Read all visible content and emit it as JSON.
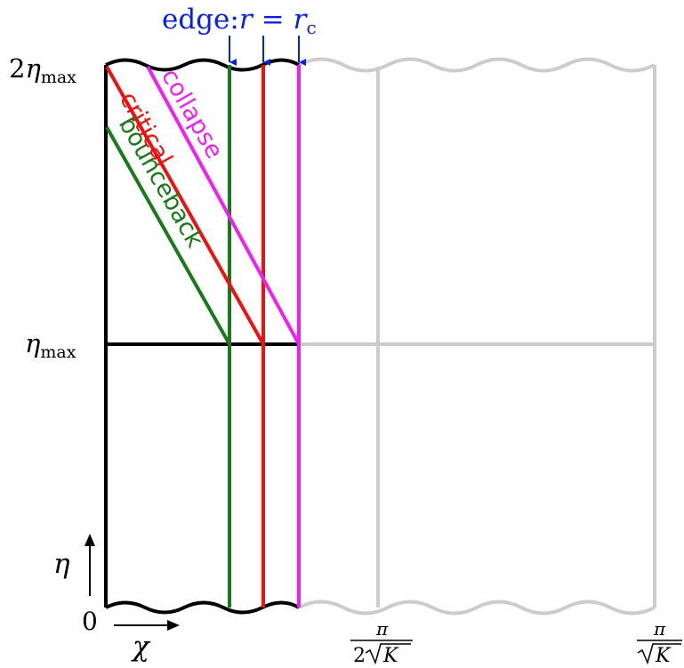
{
  "labels": {
    "edge_prefix": "edge:",
    "edge_r": "r",
    "edge_eq": "=",
    "edge_rc": "r",
    "edge_rc_sub": "c",
    "eta_2max_coef": "2",
    "eta_2max_sym": "η",
    "eta_2max_sub": "max",
    "eta_max_sym": "η",
    "eta_max_sub": "max",
    "zero": "0",
    "eta_axis": "η",
    "chi_axis": "χ",
    "pi_half_num": "π",
    "pi_half_den_2": "2",
    "pi_half_den_K": "K",
    "pi_num": "π",
    "pi_den_K": "K"
  },
  "curves": {
    "collapse": "collapse",
    "critical": "critical",
    "bounceback": "bounceback"
  },
  "colors": {
    "black": "#000000",
    "grey": "#cccccc",
    "green": "#1a7a1a",
    "red": "#ee1111",
    "magenta": "#ee22ee",
    "blue": "#0b1fe0"
  }
}
